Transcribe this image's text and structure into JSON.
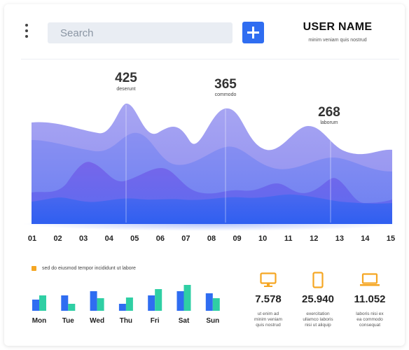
{
  "header": {
    "search_placeholder": "Search",
    "add_button_label": "+",
    "user_name": "USER NAME",
    "user_subtitle": "minim veniam quis nostrud"
  },
  "chart_data": {
    "type": "area",
    "x": [
      "01",
      "02",
      "03",
      "04",
      "05",
      "06",
      "07",
      "08",
      "09",
      "10",
      "11",
      "12",
      "13",
      "14",
      "15"
    ],
    "annotations": [
      {
        "x": "05",
        "value": "425",
        "label": "deserunt"
      },
      {
        "x": "09",
        "value": "365",
        "label": "commodo"
      },
      {
        "x": "13",
        "value": "268",
        "label": "laborum"
      }
    ],
    "colors": [
      "#9c9bf0",
      "#7b8af0",
      "#5a6df0",
      "#3a64f0"
    ]
  },
  "weekly": {
    "legend": "sed do eiusmod tempor incididunt ut labore",
    "days": [
      "Mon",
      "Tue",
      "Wed",
      "Thu",
      "Fri",
      "Sat",
      "Sun"
    ],
    "series_colors": [
      "#2f6df1",
      "#2fcfa4"
    ]
  },
  "stats": [
    {
      "icon": "monitor-icon",
      "value": "7.578",
      "desc": "ut enim ad\nminim veniam\nquis nostrud"
    },
    {
      "icon": "phone-icon",
      "value": "25.940",
      "desc": "exercitation\nullamco laboris\nnisi ut aliquip"
    },
    {
      "icon": "laptop-icon",
      "value": "11.052",
      "desc": "laboris nisi ex\nea commodo\nconsequat"
    }
  ],
  "accent_color": "#f5a623"
}
